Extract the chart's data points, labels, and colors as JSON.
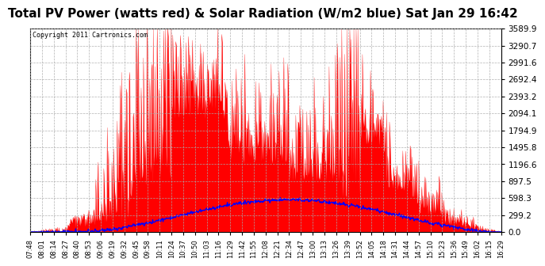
{
  "title": "Total PV Power (watts red) & Solar Radiation (W/m2 blue) Sat Jan 29 16:42",
  "copyright_text": "Copyright 2011 Cartronics.com",
  "yticks": [
    0.0,
    299.2,
    598.3,
    897.5,
    1196.6,
    1495.8,
    1794.9,
    2094.1,
    2393.2,
    2692.4,
    2991.6,
    3290.7,
    3589.9
  ],
  "ymax": 3589.9,
  "ymin": 0.0,
  "pv_color": "#FF0000",
  "solar_color": "#0000FF",
  "bg_color": "#FFFFFF",
  "grid_color": "#AAAAAA",
  "title_fontsize": 11,
  "xtick_fontsize": 6.0,
  "ytick_fontsize": 7.5,
  "xlabel_rotation": 90,
  "xticks": [
    "07:48",
    "08:01",
    "08:14",
    "08:27",
    "08:40",
    "08:53",
    "09:06",
    "09:19",
    "09:32",
    "09:45",
    "09:58",
    "10:11",
    "10:24",
    "10:37",
    "10:50",
    "11:03",
    "11:16",
    "11:29",
    "11:42",
    "11:55",
    "12:08",
    "12:21",
    "12:34",
    "12:47",
    "13:00",
    "13:13",
    "13:26",
    "13:39",
    "13:52",
    "14:05",
    "14:18",
    "14:31",
    "14:44",
    "14:57",
    "15:10",
    "15:23",
    "15:36",
    "15:49",
    "16:02",
    "16:15",
    "16:29"
  ]
}
